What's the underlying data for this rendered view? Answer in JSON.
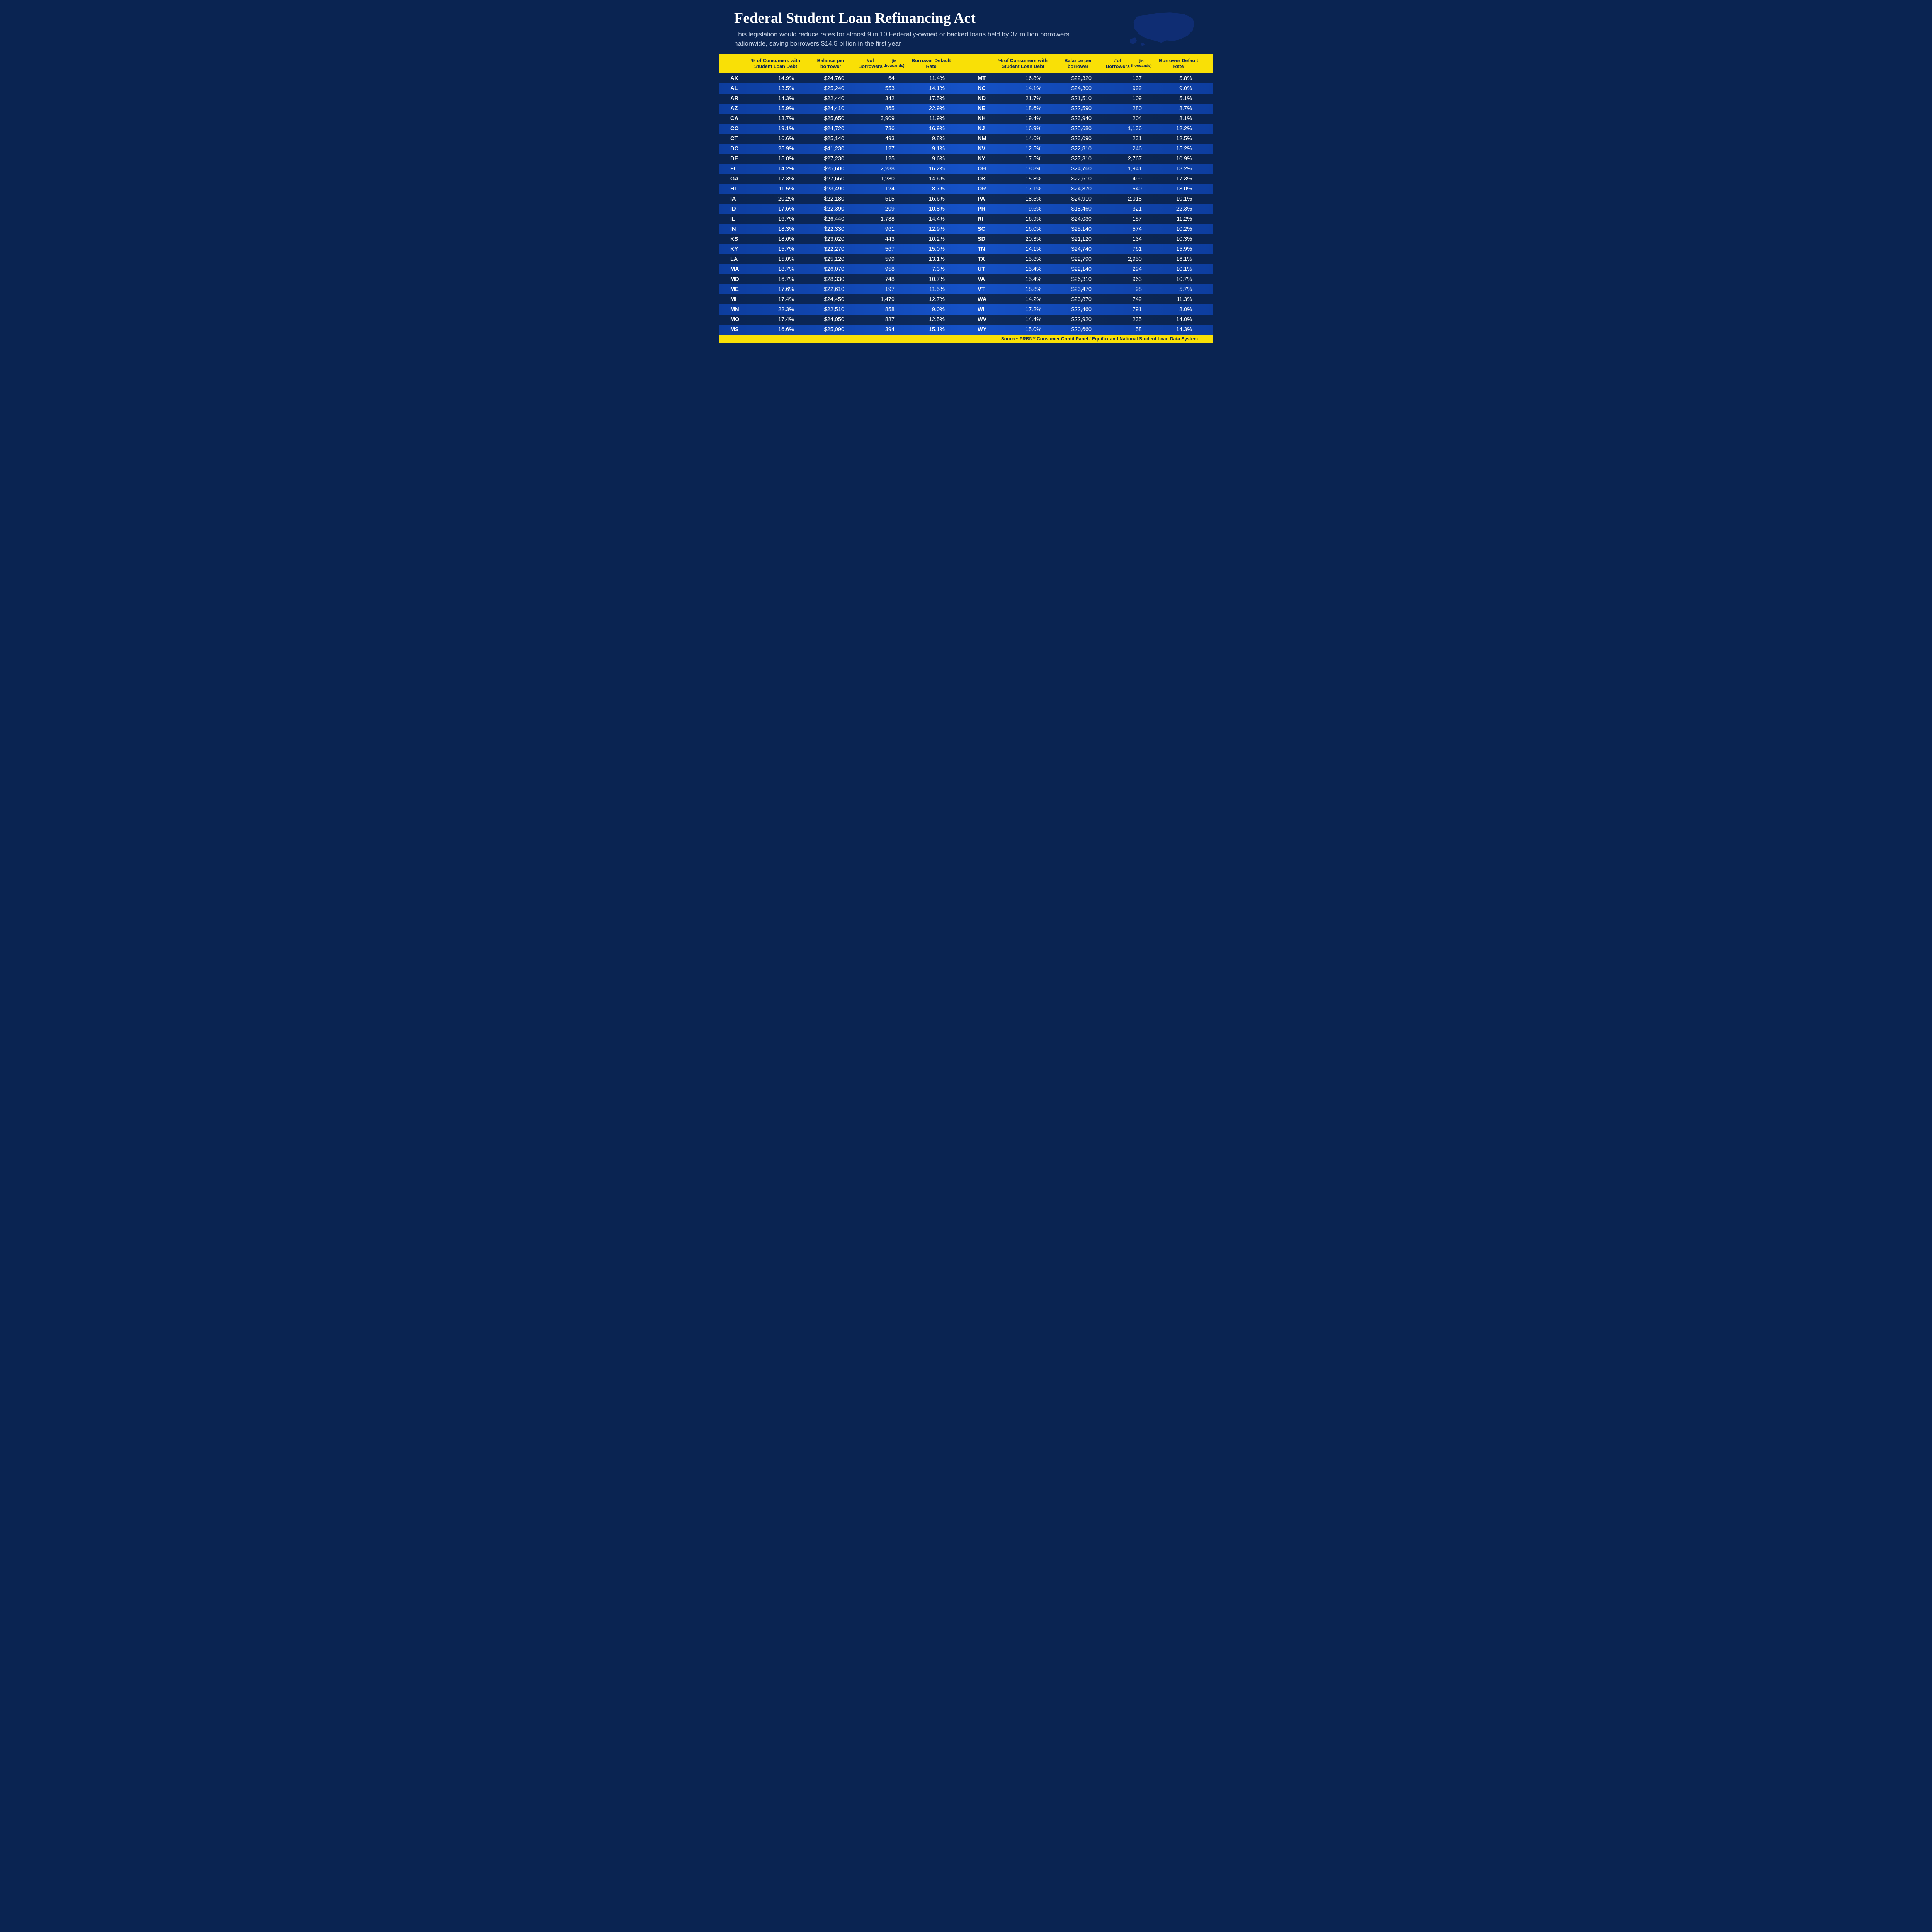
{
  "colors": {
    "bg_dark": "#0a2452",
    "row_light_left": "#0d3d9e",
    "row_light_right": "#1552c8",
    "accent_yellow": "#f9e006",
    "text_white": "#ffffff",
    "text_subtitle": "#c8d4e8"
  },
  "typography": {
    "title_font": "Georgia, serif",
    "title_size_pt": 29,
    "body_font": "Arial, sans-serif",
    "subtitle_size_pt": 13,
    "header_cell_size_pt": 9.5,
    "data_cell_size_pt": 11
  },
  "header": {
    "title": "Federal Student Loan Refinancing Act",
    "subtitle": "This legislation would reduce rates for almost 9 in 10 Federally-owned or backed loans held by 37 million borrowers nationwide, saving borrowers $14.5 billion in the first year"
  },
  "table": {
    "columns": [
      {
        "key": "state",
        "label": ""
      },
      {
        "key": "pct",
        "label": "% of Consumers with Student Loan Debt"
      },
      {
        "key": "bal",
        "label": "Balance per borrower"
      },
      {
        "key": "brw",
        "label": "#of Borrowers",
        "sublabel": "(in thousands)"
      },
      {
        "key": "def",
        "label": "Borrower Default Rate"
      }
    ],
    "left": [
      {
        "state": "AK",
        "pct": "14.9%",
        "bal": "$24,760",
        "brw": "64",
        "def": "11.4%"
      },
      {
        "state": "AL",
        "pct": "13.5%",
        "bal": "$25,240",
        "brw": "553",
        "def": "14.1%"
      },
      {
        "state": "AR",
        "pct": "14.3%",
        "bal": "$22,440",
        "brw": "342",
        "def": "17.5%"
      },
      {
        "state": "AZ",
        "pct": "15.9%",
        "bal": "$24,410",
        "brw": "865",
        "def": "22.9%"
      },
      {
        "state": "CA",
        "pct": "13.7%",
        "bal": "$25,650",
        "brw": "3,909",
        "def": "11.9%"
      },
      {
        "state": "CO",
        "pct": "19.1%",
        "bal": "$24,720",
        "brw": "736",
        "def": "16.9%"
      },
      {
        "state": "CT",
        "pct": "16.6%",
        "bal": "$25,140",
        "brw": "493",
        "def": "9.8%"
      },
      {
        "state": "DC",
        "pct": "25.9%",
        "bal": "$41,230",
        "brw": "127",
        "def": "9.1%"
      },
      {
        "state": "DE",
        "pct": "15.0%",
        "bal": "$27,230",
        "brw": "125",
        "def": "9.6%"
      },
      {
        "state": "FL",
        "pct": "14.2%",
        "bal": "$25,600",
        "brw": "2,238",
        "def": "16.2%"
      },
      {
        "state": "GA",
        "pct": "17.3%",
        "bal": "$27,660",
        "brw": "1,280",
        "def": "14.6%"
      },
      {
        "state": "HI",
        "pct": "11.5%",
        "bal": "$23,490",
        "brw": "124",
        "def": "8.7%"
      },
      {
        "state": "IA",
        "pct": "20.2%",
        "bal": "$22,180",
        "brw": "515",
        "def": "16.6%"
      },
      {
        "state": "ID",
        "pct": "17.6%",
        "bal": "$22,390",
        "brw": "209",
        "def": "10.8%"
      },
      {
        "state": "IL",
        "pct": "16.7%",
        "bal": "$26,440",
        "brw": "1,738",
        "def": "14.4%"
      },
      {
        "state": "IN",
        "pct": "18.3%",
        "bal": "$22,330",
        "brw": "961",
        "def": "12.9%"
      },
      {
        "state": "KS",
        "pct": "18.6%",
        "bal": "$23,620",
        "brw": "443",
        "def": "10.2%"
      },
      {
        "state": "KY",
        "pct": "15.7%",
        "bal": "$22,270",
        "brw": "567",
        "def": "15.0%"
      },
      {
        "state": "LA",
        "pct": "15.0%",
        "bal": "$25,120",
        "brw": "599",
        "def": "13.1%"
      },
      {
        "state": "MA",
        "pct": "18.7%",
        "bal": "$26,070",
        "brw": "958",
        "def": "7.3%"
      },
      {
        "state": "MD",
        "pct": "16.7%",
        "bal": "$28,330",
        "brw": "748",
        "def": "10.7%"
      },
      {
        "state": "ME",
        "pct": "17.6%",
        "bal": "$22,610",
        "brw": "197",
        "def": "11.5%"
      },
      {
        "state": "MI",
        "pct": "17.4%",
        "bal": "$24,450",
        "brw": "1,479",
        "def": "12.7%"
      },
      {
        "state": "MN",
        "pct": "22.3%",
        "bal": "$22,510",
        "brw": "858",
        "def": "9.0%"
      },
      {
        "state": "MO",
        "pct": "17.4%",
        "bal": "$24,050",
        "brw": "887",
        "def": "12.5%"
      },
      {
        "state": "MS",
        "pct": "16.6%",
        "bal": "$25,090",
        "brw": "394",
        "def": "15.1%"
      }
    ],
    "right": [
      {
        "state": "MT",
        "pct": "16.8%",
        "bal": "$22,320",
        "brw": "137",
        "def": "5.8%"
      },
      {
        "state": "NC",
        "pct": "14.1%",
        "bal": "$24,300",
        "brw": "999",
        "def": "9.0%"
      },
      {
        "state": "ND",
        "pct": "21.7%",
        "bal": "$21,510",
        "brw": "109",
        "def": "5.1%"
      },
      {
        "state": "NE",
        "pct": "18.6%",
        "bal": "$22,590",
        "brw": "280",
        "def": "8.7%"
      },
      {
        "state": "NH",
        "pct": "19.4%",
        "bal": "$23,940",
        "brw": "204",
        "def": "8.1%"
      },
      {
        "state": "NJ",
        "pct": "16.9%",
        "bal": "$25,680",
        "brw": "1,136",
        "def": "12.2%"
      },
      {
        "state": "NM",
        "pct": "14.6%",
        "bal": "$23,090",
        "brw": "231",
        "def": "12.5%"
      },
      {
        "state": "NV",
        "pct": "12.5%",
        "bal": "$22,810",
        "brw": "246",
        "def": "15.2%"
      },
      {
        "state": "NY",
        "pct": "17.5%",
        "bal": "$27,310",
        "brw": "2,767",
        "def": "10.9%"
      },
      {
        "state": "OH",
        "pct": "18.8%",
        "bal": "$24,760",
        "brw": "1,941",
        "def": "13.2%"
      },
      {
        "state": "OK",
        "pct": "15.8%",
        "bal": "$22,610",
        "brw": "499",
        "def": "17.3%"
      },
      {
        "state": "OR",
        "pct": "17.1%",
        "bal": "$24,370",
        "brw": "540",
        "def": "13.0%"
      },
      {
        "state": "PA",
        "pct": "18.5%",
        "bal": "$24,910",
        "brw": "2,018",
        "def": "10.1%"
      },
      {
        "state": "PR",
        "pct": "9.6%",
        "bal": "$18,460",
        "brw": "321",
        "def": "22.3%"
      },
      {
        "state": "RI",
        "pct": "16.9%",
        "bal": "$24,030",
        "brw": "157",
        "def": "11.2%"
      },
      {
        "state": "SC",
        "pct": "16.0%",
        "bal": "$25,140",
        "brw": "574",
        "def": "10.2%"
      },
      {
        "state": "SD",
        "pct": "20.3%",
        "bal": "$21,120",
        "brw": "134",
        "def": "10.3%"
      },
      {
        "state": "TN",
        "pct": "14.1%",
        "bal": "$24,740",
        "brw": "761",
        "def": "15.9%"
      },
      {
        "state": "TX",
        "pct": "15.8%",
        "bal": "$22,790",
        "brw": "2,950",
        "def": "16.1%"
      },
      {
        "state": "UT",
        "pct": "15.4%",
        "bal": "$22,140",
        "brw": "294",
        "def": "10.1%"
      },
      {
        "state": "VA",
        "pct": "15.4%",
        "bal": "$26,310",
        "brw": "963",
        "def": "10.7%"
      },
      {
        "state": "VT",
        "pct": "18.8%",
        "bal": "$23,470",
        "brw": "98",
        "def": "5.7%"
      },
      {
        "state": "WA",
        "pct": "14.2%",
        "bal": "$23,870",
        "brw": "749",
        "def": "11.3%"
      },
      {
        "state": "WI",
        "pct": "17.2%",
        "bal": "$22,460",
        "brw": "791",
        "def": "8.0%"
      },
      {
        "state": "WV",
        "pct": "14.4%",
        "bal": "$22,920",
        "brw": "235",
        "def": "14.0%"
      },
      {
        "state": "WY",
        "pct": "15.0%",
        "bal": "$20,660",
        "brw": "58",
        "def": "14.3%"
      }
    ]
  },
  "footer": {
    "source": "Source: FRBNY Consumer Credit Panel / Equifax and National Student Loan Data System"
  }
}
